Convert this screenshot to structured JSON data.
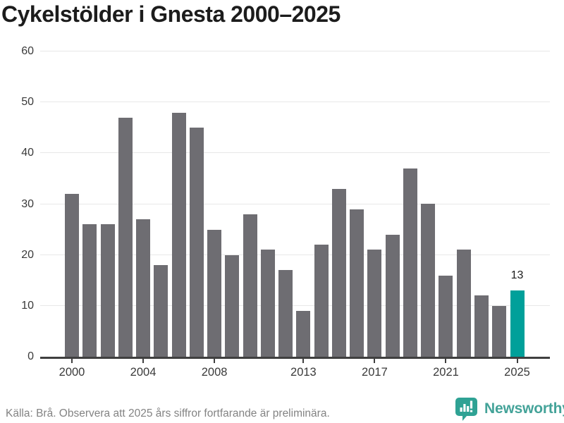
{
  "title": "Cykelstölder i Gnesta 2000–2025",
  "footer": {
    "source_note": "Källa: Brå. Observera att 2025 års siffror fortfarande är preliminära.",
    "logo_text": "Newsworthy"
  },
  "colors": {
    "bar": "#6e6d72",
    "bar_highlight": "#00a09a",
    "gridline": "#e8e8e8",
    "axis": "#3f3f3f",
    "title_text": "#1c1c1c",
    "tick_text": "#3a3a3a",
    "footer_text": "#838383",
    "logo_teal": "#44a399"
  },
  "chart_data": {
    "type": "bar",
    "title": "Cykelstölder i Gnesta 2000–2025",
    "categories": [
      2000,
      2001,
      2002,
      2003,
      2004,
      2005,
      2006,
      2007,
      2008,
      2009,
      2010,
      2011,
      2012,
      2013,
      2014,
      2015,
      2016,
      2017,
      2018,
      2019,
      2020,
      2021,
      2022,
      2023,
      2024,
      2025
    ],
    "values": [
      32,
      26,
      26,
      47,
      27,
      18,
      48,
      45,
      25,
      20,
      28,
      21,
      17,
      9,
      22,
      33,
      29,
      21,
      24,
      37,
      30,
      16,
      21,
      12,
      10,
      13
    ],
    "highlight_index": 25,
    "highlight_value_label": "13",
    "x_tick_indices": [
      0,
      4,
      8,
      13,
      17,
      21,
      25
    ],
    "x_tick_labels": [
      "2000",
      "2004",
      "2008",
      "2013",
      "2017",
      "2021",
      "2025"
    ],
    "y_ticks": [
      0,
      10,
      20,
      30,
      40,
      50,
      60
    ],
    "ylim": [
      0,
      60
    ],
    "xlabel": "",
    "ylabel": "",
    "grid": true,
    "legend": false
  }
}
